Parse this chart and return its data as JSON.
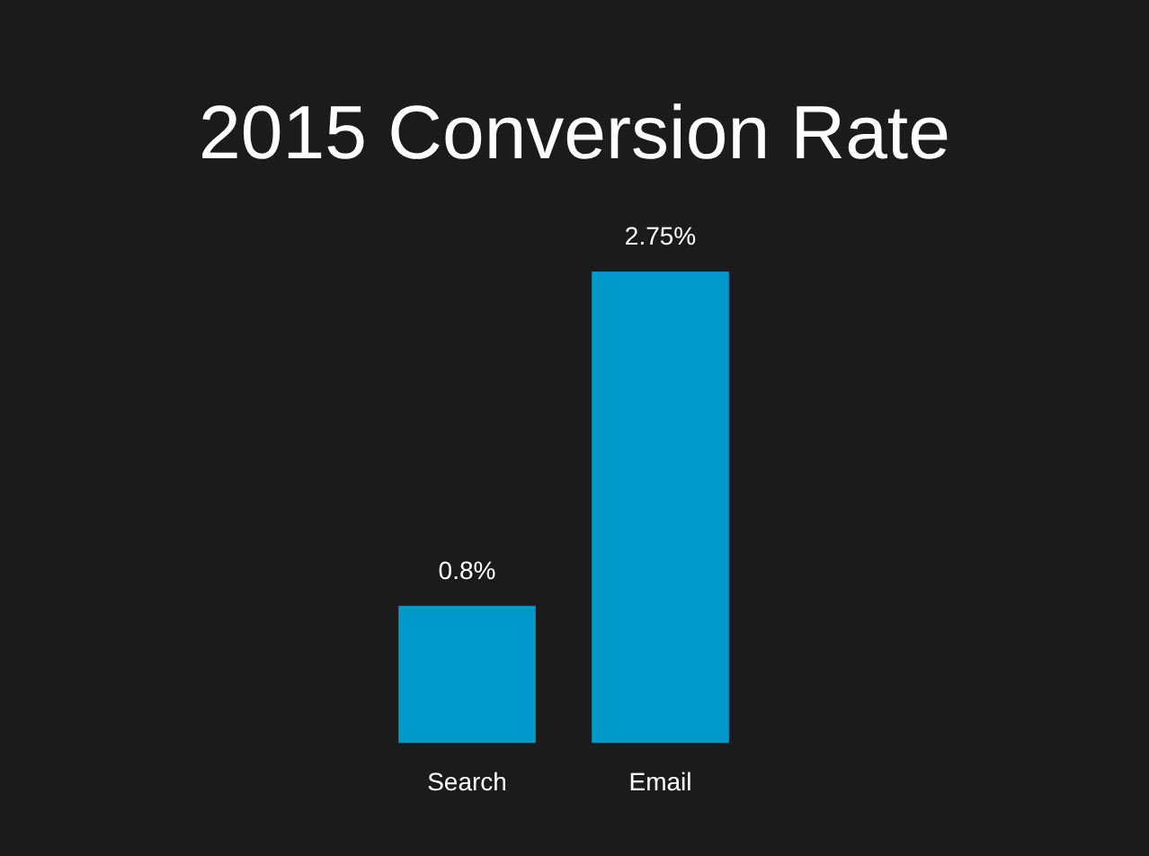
{
  "chart_data": {
    "type": "bar",
    "title": "2015 Conversion Rate",
    "categories": [
      "Search",
      "Email"
    ],
    "values": [
      0.8,
      2.75
    ],
    "value_labels": [
      "0.8%",
      "2.75%"
    ],
    "color": "#0099cc"
  }
}
